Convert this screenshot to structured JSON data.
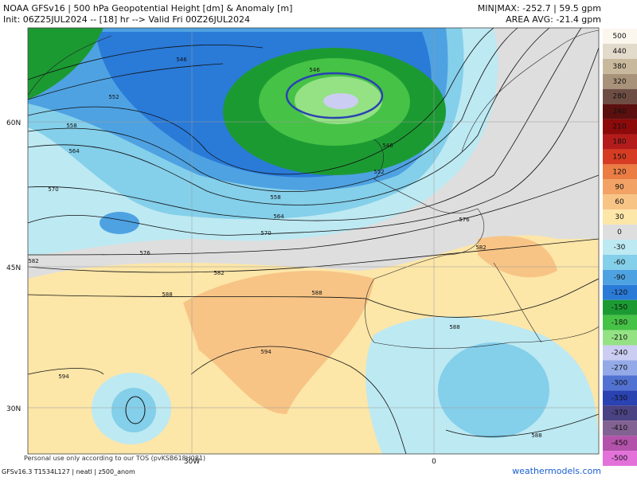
{
  "header": {
    "title": "NOAA GFSv16 | 500 hPa Geopotential Height [dm] & Anomaly [m]",
    "init": "Init: 06Z25JUL2024 -- [18] hr --> Valid Fri 00Z26JUL2024",
    "minmax": "MIN|MAX: -252.7 | 59.5 gpm",
    "area_avg": "AREA AVG: -21.4 gpm"
  },
  "map": {
    "lat_labels": [
      "60N",
      "45N",
      "30N"
    ],
    "lon_labels": [
      "30W",
      "0"
    ],
    "contour_labels": [
      546,
      552,
      558,
      564,
      570,
      546,
      546,
      552,
      558,
      564,
      570,
      576,
      582,
      582,
      588,
      588,
      594,
      594,
      576,
      582,
      588,
      588
    ]
  },
  "colorbar": [
    {
      "value": 500,
      "color": "#fbf7ee"
    },
    {
      "value": 440,
      "color": "#e2dacb"
    },
    {
      "value": 380,
      "color": "#c9b99c"
    },
    {
      "value": 320,
      "color": "#a8937a"
    },
    {
      "value": 280,
      "color": "#6e4e44"
    },
    {
      "value": 240,
      "color": "#5c0f0f"
    },
    {
      "value": 210,
      "color": "#8c0a0a"
    },
    {
      "value": 180,
      "color": "#b41c1c"
    },
    {
      "value": 150,
      "color": "#d63c22"
    },
    {
      "value": 120,
      "color": "#ea7c44"
    },
    {
      "value": 90,
      "color": "#f2a264"
    },
    {
      "value": 60,
      "color": "#f7c486"
    },
    {
      "value": 30,
      "color": "#fce6a8"
    },
    {
      "value": 0,
      "color": "#dedede"
    },
    {
      "value": -30,
      "color": "#bde9f2"
    },
    {
      "value": -60,
      "color": "#84cfea"
    },
    {
      "value": -90,
      "color": "#4ea2e2"
    },
    {
      "value": -120,
      "color": "#2a7ad8"
    },
    {
      "value": -150,
      "color": "#1c9a32"
    },
    {
      "value": -180,
      "color": "#46c246"
    },
    {
      "value": -210,
      "color": "#94e284"
    },
    {
      "value": -240,
      "color": "#cccdf2"
    },
    {
      "value": -270,
      "color": "#94aae8"
    },
    {
      "value": -300,
      "color": "#5272d2"
    },
    {
      "value": -330,
      "color": "#2a42b2"
    },
    {
      "value": -370,
      "color": "#4a4282"
    },
    {
      "value": -410,
      "color": "#826292"
    },
    {
      "value": -450,
      "color": "#b252aa"
    },
    {
      "value": -500,
      "color": "#e272da"
    }
  ],
  "footer": {
    "model": "GFSv16.3 T1534L127 | neatl | z500_anom",
    "site": "weathermodels.com",
    "tos": "Personal use only according to our TOS (pvKSB618H081)"
  }
}
